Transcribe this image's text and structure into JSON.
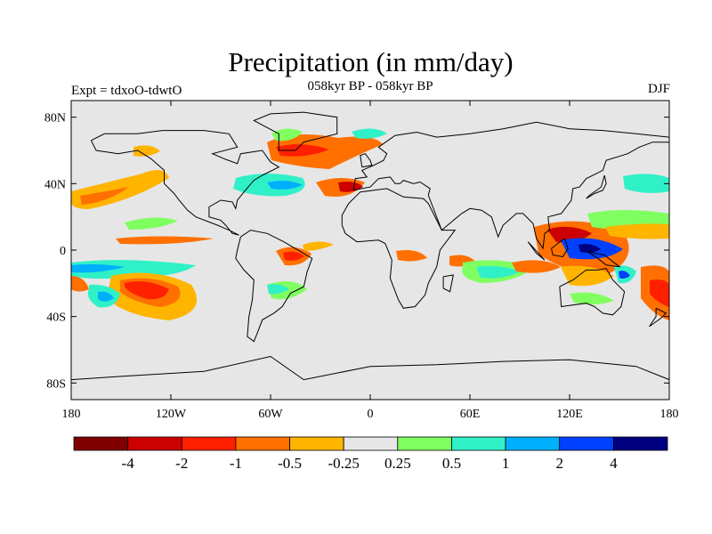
{
  "title": "Precipitation (in mm/day)",
  "subtitle_left": "Expt = tdxoO-tdwtO",
  "subtitle_center": "058kyr BP - 058kyr BP",
  "subtitle_right": "DJF",
  "map": {
    "projection": "cylindrical-equidistant",
    "lon_range": [
      -180,
      180
    ],
    "lat_range": [
      -90,
      90
    ],
    "background_color": "#e6e6e6",
    "lat_ticks": [
      {
        "value": 80,
        "label": "80N"
      },
      {
        "value": 40,
        "label": "40N"
      },
      {
        "value": 0,
        "label": "0"
      },
      {
        "value": -40,
        "label": "40S"
      },
      {
        "value": -80,
        "label": "80S"
      }
    ],
    "lon_ticks": [
      {
        "value": -180,
        "label": "180"
      },
      {
        "value": -120,
        "label": "120W"
      },
      {
        "value": -60,
        "label": "60W"
      },
      {
        "value": 0,
        "label": "0"
      },
      {
        "value": 60,
        "label": "60E"
      },
      {
        "value": 120,
        "label": "120E"
      },
      {
        "value": 180,
        "label": "180"
      }
    ]
  },
  "colorbar": {
    "colors": [
      "#800000",
      "#cc0000",
      "#ff2000",
      "#ff7000",
      "#ffb400",
      "#e6e6e6",
      "#80ff60",
      "#30f0c8",
      "#00b0ff",
      "#0040ff",
      "#000080"
    ],
    "levels": [
      "-4",
      "-2",
      "-1",
      "-0.5",
      "-0.25",
      "0.25",
      "0.5",
      "1",
      "2",
      "4"
    ]
  }
}
